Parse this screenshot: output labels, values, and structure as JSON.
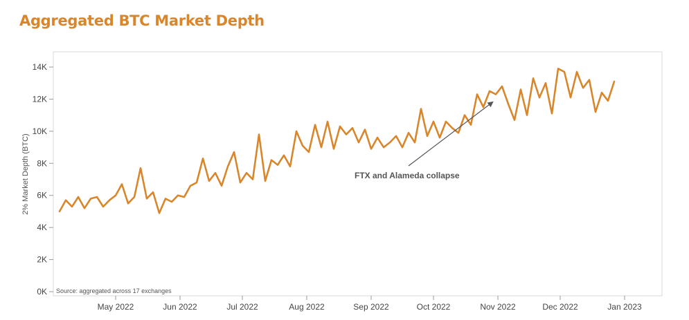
{
  "chart_data": {
    "type": "line",
    "title": "Aggregated BTC Market Depth",
    "ylabel": "2% Market Depth (BTC)",
    "xlabel": "",
    "ylim": [
      0,
      14500
    ],
    "grid": false,
    "line_color": "#d9862b",
    "title_color": "#d9862b",
    "source": "Source: aggregated across 17 exchanges",
    "annotation": {
      "text": "FTX and Alameda collapse",
      "target_date": "2022-11-01",
      "target_value": 12050
    },
    "yticks": [
      {
        "value": 0,
        "label": "0K"
      },
      {
        "value": 2000,
        "label": "2K"
      },
      {
        "value": 4000,
        "label": "4K"
      },
      {
        "value": 6000,
        "label": "6K"
      },
      {
        "value": 8000,
        "label": "8K"
      },
      {
        "value": 10000,
        "label": "10K"
      },
      {
        "value": 12000,
        "label": "12K"
      },
      {
        "value": 14000,
        "label": "14K"
      }
    ],
    "xticks": [
      {
        "date": "2022-05-01",
        "label": "May 2022"
      },
      {
        "date": "2022-06-01",
        "label": "Jun 2022"
      },
      {
        "date": "2022-07-01",
        "label": "Jul 2022"
      },
      {
        "date": "2022-08-01",
        "label": "Aug 2022"
      },
      {
        "date": "2022-09-01",
        "label": "Sep 2022"
      },
      {
        "date": "2022-10-01",
        "label": "Oct 2022"
      },
      {
        "date": "2022-11-01",
        "label": "Nov 2022"
      },
      {
        "date": "2022-12-01",
        "label": "Dec 2022"
      },
      {
        "date": "2023-01-01",
        "label": "Jan 2023"
      }
    ],
    "x": [
      "2022-04-04",
      "2022-04-07",
      "2022-04-10",
      "2022-04-13",
      "2022-04-16",
      "2022-04-19",
      "2022-04-22",
      "2022-04-25",
      "2022-04-28",
      "2022-05-01",
      "2022-05-04",
      "2022-05-07",
      "2022-05-10",
      "2022-05-13",
      "2022-05-16",
      "2022-05-19",
      "2022-05-22",
      "2022-05-25",
      "2022-05-28",
      "2022-05-31",
      "2022-06-03",
      "2022-06-06",
      "2022-06-09",
      "2022-06-12",
      "2022-06-15",
      "2022-06-18",
      "2022-06-21",
      "2022-06-24",
      "2022-06-27",
      "2022-06-30",
      "2022-07-03",
      "2022-07-06",
      "2022-07-09",
      "2022-07-12",
      "2022-07-15",
      "2022-07-18",
      "2022-07-21",
      "2022-07-24",
      "2022-07-27",
      "2022-07-30",
      "2022-08-02",
      "2022-08-05",
      "2022-08-08",
      "2022-08-11",
      "2022-08-14",
      "2022-08-17",
      "2022-08-20",
      "2022-08-23",
      "2022-08-26",
      "2022-08-29",
      "2022-09-01",
      "2022-09-04",
      "2022-09-07",
      "2022-09-10",
      "2022-09-13",
      "2022-09-16",
      "2022-09-19",
      "2022-09-22",
      "2022-09-25",
      "2022-09-28",
      "2022-10-01",
      "2022-10-04",
      "2022-10-07",
      "2022-10-10",
      "2022-10-13",
      "2022-10-16",
      "2022-10-19",
      "2022-10-22",
      "2022-10-25",
      "2022-10-28",
      "2022-10-31",
      "2022-11-03",
      "2022-11-06",
      "2022-11-09",
      "2022-11-12",
      "2022-11-15",
      "2022-11-18",
      "2022-11-21",
      "2022-11-24",
      "2022-11-27",
      "2022-11-30",
      "2022-12-03",
      "2022-12-06",
      "2022-12-09",
      "2022-12-12",
      "2022-12-15",
      "2022-12-18",
      "2022-12-21",
      "2022-12-24",
      "2022-12-27"
    ],
    "series": [
      {
        "values": [
          5000,
          5700,
          5300,
          5900,
          5200,
          5800,
          5900,
          5300,
          5700,
          6000,
          6700,
          5500,
          5900,
          7700,
          5800,
          6200,
          4900,
          5800,
          5600,
          6000,
          5900,
          6600,
          6800,
          8300,
          6900,
          7400,
          6600,
          7800,
          8700,
          6800,
          7400,
          7000,
          9800,
          6900,
          8200,
          7900,
          8500,
          7800,
          10000,
          9100,
          8700,
          10400,
          9000,
          10600,
          8900,
          10300,
          9800,
          10200,
          9300,
          10100,
          8900,
          9600,
          9000,
          9300,
          9700,
          9000,
          9900,
          9300,
          11400,
          9700,
          10600,
          9600,
          10600,
          10200,
          9900,
          11000,
          10400,
          12300,
          11500,
          12500,
          12300,
          12800,
          11700,
          10700,
          12600,
          11000,
          13300,
          12100,
          13000,
          11100,
          13900,
          13700,
          12100,
          13700,
          12700,
          13200,
          11200,
          12400,
          11900,
          13100
        ]
      }
    ]
  }
}
